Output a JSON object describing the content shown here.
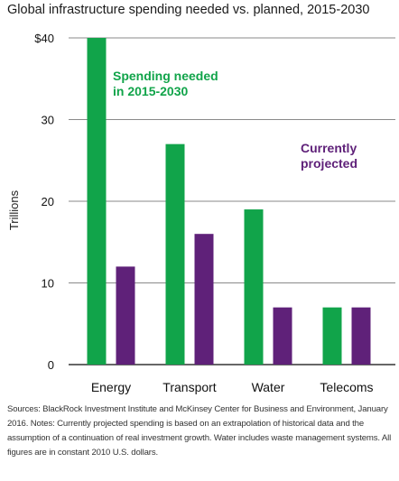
{
  "title": "Global infrastructure spending needed vs. planned, 2015-2030",
  "colors": {
    "needed": "#11A44A",
    "projected": "#5F2179",
    "grid": "#8a8a8a",
    "axis": "#333333"
  },
  "chart_data": {
    "type": "bar",
    "title": "Global infrastructure spending needed vs. planned, 2015-2030",
    "categories": [
      "Energy",
      "Transport",
      "Water",
      "Telecoms"
    ],
    "series": [
      {
        "name": "Spending needed\nin 2015-2030",
        "values": [
          40,
          27,
          19,
          7
        ]
      },
      {
        "name": "Currently\nprojected",
        "values": [
          12,
          16,
          7,
          7
        ]
      }
    ],
    "ylabel": "Trillions",
    "xlabel": "",
    "ylim": [
      0,
      40
    ],
    "yticks": [
      0,
      10,
      20,
      30,
      40
    ],
    "ytick_labels": [
      "0",
      "10",
      "20",
      "30",
      "$40"
    ],
    "grid": true,
    "legend": "inline labels: needed at top-left, projected at top-right"
  },
  "source_note": "Sources: BlackRock Investment Institute and McKinsey Center for Business and Environment, January 2016. Notes: Currently projected spending is based on an extrapolation of historical data and the assumption of a continuation of real investment growth. Water includes waste management systems. All figures are in constant 2010 U.S. dollars."
}
